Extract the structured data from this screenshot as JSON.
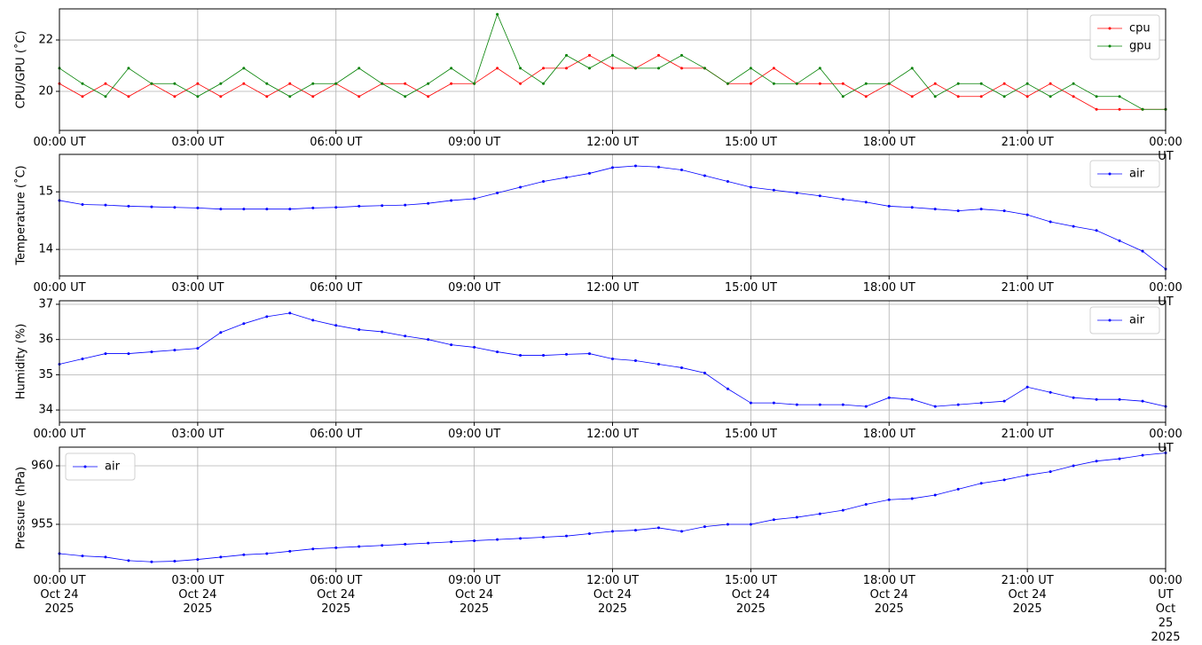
{
  "chart_data": [
    {
      "type": "line",
      "ylabel": "CPU/GPU (˚C)",
      "legend": "upper right",
      "grid": true,
      "x": [
        0,
        0.5,
        1,
        1.5,
        2,
        2.5,
        3,
        3.5,
        4,
        4.5,
        5,
        5.5,
        6,
        6.5,
        7,
        7.5,
        8,
        8.5,
        9,
        9.5,
        10,
        10.5,
        11,
        11.5,
        12,
        12.5,
        13,
        13.5,
        14,
        14.5,
        15,
        15.5,
        16,
        16.5,
        17,
        17.5,
        18,
        18.5,
        19,
        19.5,
        20,
        20.5,
        21,
        21.5,
        22,
        22.5,
        23,
        23.5,
        24
      ],
      "xlim": [
        0,
        24
      ],
      "xticks": [
        {
          "value": 0,
          "label": "00:00 UT"
        },
        {
          "value": 3,
          "label": "03:00 UT"
        },
        {
          "value": 6,
          "label": "06:00 UT"
        },
        {
          "value": 9,
          "label": "09:00 UT"
        },
        {
          "value": 12,
          "label": "12:00 UT"
        },
        {
          "value": 15,
          "label": "15:00 UT"
        },
        {
          "value": 18,
          "label": "18:00 UT"
        },
        {
          "value": 21,
          "label": "21:00 UT"
        },
        {
          "value": 24,
          "label": "00:00 UT"
        }
      ],
      "ylim": [
        18.48,
        23.21
      ],
      "yticks": [
        20,
        22
      ],
      "series": [
        {
          "name": "cpu",
          "color": "#ff0000",
          "values": [
            20.3,
            19.8,
            20.3,
            19.8,
            20.3,
            19.8,
            20.3,
            19.8,
            20.3,
            19.8,
            20.3,
            19.8,
            20.3,
            19.8,
            20.3,
            20.3,
            19.8,
            20.3,
            20.3,
            20.9,
            20.3,
            20.9,
            20.9,
            21.4,
            20.9,
            20.9,
            21.4,
            20.9,
            20.9,
            20.3,
            20.3,
            20.9,
            20.3,
            20.3,
            20.3,
            19.8,
            20.3,
            19.8,
            20.3,
            19.8,
            19.8,
            20.3,
            19.8,
            20.3,
            19.8,
            19.3,
            19.3,
            19.3,
            19.3
          ]
        },
        {
          "name": "gpu",
          "color": "#008000",
          "values": [
            20.9,
            20.3,
            19.8,
            20.9,
            20.3,
            20.3,
            19.8,
            20.3,
            20.9,
            20.3,
            19.8,
            20.3,
            20.3,
            20.9,
            20.3,
            19.8,
            20.3,
            20.9,
            20.3,
            23.0,
            20.9,
            20.3,
            21.4,
            20.9,
            21.4,
            20.9,
            20.9,
            21.4,
            20.9,
            20.3,
            20.9,
            20.3,
            20.3,
            20.9,
            19.8,
            20.3,
            20.3,
            20.9,
            19.8,
            20.3,
            20.3,
            19.8,
            20.3,
            19.8,
            20.3,
            19.8,
            19.8,
            19.3,
            19.3
          ]
        }
      ]
    },
    {
      "type": "line",
      "ylabel": "Temperature (˚C)",
      "legend": "upper right",
      "grid": true,
      "x": [
        0,
        0.5,
        1,
        1.5,
        2,
        2.5,
        3,
        3.5,
        4,
        4.5,
        5,
        5.5,
        6,
        6.5,
        7,
        7.5,
        8,
        8.5,
        9,
        9.5,
        10,
        10.5,
        11,
        11.5,
        12,
        12.5,
        13,
        13.5,
        14,
        14.5,
        15,
        15.5,
        16,
        16.5,
        17,
        17.5,
        18,
        18.5,
        19,
        19.5,
        20,
        20.5,
        21,
        21.5,
        22,
        22.5,
        23,
        23.5,
        24
      ],
      "xlim": [
        0,
        24
      ],
      "xticks": [
        {
          "value": 0,
          "label": "00:00 UT"
        },
        {
          "value": 3,
          "label": "03:00 UT"
        },
        {
          "value": 6,
          "label": "06:00 UT"
        },
        {
          "value": 9,
          "label": "09:00 UT"
        },
        {
          "value": 12,
          "label": "12:00 UT"
        },
        {
          "value": 15,
          "label": "15:00 UT"
        },
        {
          "value": 18,
          "label": "18:00 UT"
        },
        {
          "value": 21,
          "label": "21:00 UT"
        },
        {
          "value": 24,
          "label": "00:00 UT"
        }
      ],
      "ylim": [
        13.54,
        15.65
      ],
      "yticks": [
        14,
        15
      ],
      "series": [
        {
          "name": "air",
          "color": "#0000ff",
          "values": [
            14.85,
            14.78,
            14.77,
            14.75,
            14.74,
            14.73,
            14.72,
            14.7,
            14.7,
            14.7,
            14.7,
            14.72,
            14.73,
            14.75,
            14.76,
            14.77,
            14.8,
            14.85,
            14.88,
            14.98,
            15.08,
            15.18,
            15.25,
            15.32,
            15.42,
            15.45,
            15.43,
            15.38,
            15.28,
            15.18,
            15.08,
            15.03,
            14.98,
            14.93,
            14.87,
            14.82,
            14.75,
            14.73,
            14.7,
            14.67,
            14.7,
            14.67,
            14.6,
            14.48,
            14.4,
            14.33,
            14.15,
            13.97,
            13.66
          ]
        }
      ]
    },
    {
      "type": "line",
      "ylabel": "Humidity (%)",
      "legend": "upper right",
      "grid": true,
      "x": [
        0,
        0.5,
        1,
        1.5,
        2,
        2.5,
        3,
        3.5,
        4,
        4.5,
        5,
        5.5,
        6,
        6.5,
        7,
        7.5,
        8,
        8.5,
        9,
        9.5,
        10,
        10.5,
        11,
        11.5,
        12,
        12.5,
        13,
        13.5,
        14,
        14.5,
        15,
        15.5,
        16,
        16.5,
        17,
        17.5,
        18,
        18.5,
        19,
        19.5,
        20,
        20.5,
        21,
        21.5,
        22,
        22.5,
        23,
        23.5,
        24
      ],
      "xlim": [
        0,
        24
      ],
      "xticks": [
        {
          "value": 0,
          "label": "00:00 UT"
        },
        {
          "value": 3,
          "label": "03:00 UT"
        },
        {
          "value": 6,
          "label": "06:00 UT"
        },
        {
          "value": 9,
          "label": "09:00 UT"
        },
        {
          "value": 12,
          "label": "12:00 UT"
        },
        {
          "value": 15,
          "label": "15:00 UT"
        },
        {
          "value": 18,
          "label": "18:00 UT"
        },
        {
          "value": 21,
          "label": "21:00 UT"
        },
        {
          "value": 24,
          "label": "00:00 UT"
        }
      ],
      "ylim": [
        33.65,
        37.1
      ],
      "yticks": [
        34,
        35,
        36,
        37
      ],
      "series": [
        {
          "name": "air",
          "color": "#0000ff",
          "values": [
            35.3,
            35.45,
            35.6,
            35.6,
            35.65,
            35.7,
            35.75,
            36.2,
            36.45,
            36.65,
            36.75,
            36.55,
            36.4,
            36.28,
            36.22,
            36.1,
            36.0,
            35.85,
            35.78,
            35.65,
            35.55,
            35.55,
            35.58,
            35.6,
            35.45,
            35.4,
            35.3,
            35.2,
            35.05,
            34.6,
            34.2,
            34.2,
            34.15,
            34.15,
            34.15,
            34.1,
            34.35,
            34.3,
            34.1,
            34.15,
            34.2,
            34.25,
            34.65,
            34.5,
            34.35,
            34.3,
            34.3,
            34.25,
            34.1
          ]
        }
      ]
    },
    {
      "type": "line",
      "ylabel": "Pressure (hPa)",
      "legend": "upper left",
      "grid": true,
      "x": [
        0,
        0.5,
        1,
        1.5,
        2,
        2.5,
        3,
        3.5,
        4,
        4.5,
        5,
        5.5,
        6,
        6.5,
        7,
        7.5,
        8,
        8.5,
        9,
        9.5,
        10,
        10.5,
        11,
        11.5,
        12,
        12.5,
        13,
        13.5,
        14,
        14.5,
        15,
        15.5,
        16,
        16.5,
        17,
        17.5,
        18,
        18.5,
        19,
        19.5,
        20,
        20.5,
        21,
        21.5,
        22,
        22.5,
        23,
        23.5,
        24
      ],
      "xlim": [
        0,
        24
      ],
      "xticks": [
        {
          "value": 0,
          "label": "00:00 UT\nOct 24\n2025"
        },
        {
          "value": 3,
          "label": "03:00 UT\nOct 24\n2025"
        },
        {
          "value": 6,
          "label": "06:00 UT\nOct 24\n2025"
        },
        {
          "value": 9,
          "label": "09:00 UT\nOct 24\n2025"
        },
        {
          "value": 12,
          "label": "12:00 UT\nOct 24\n2025"
        },
        {
          "value": 15,
          "label": "15:00 UT\nOct 24\n2025"
        },
        {
          "value": 18,
          "label": "18:00 UT\nOct 24\n2025"
        },
        {
          "value": 21,
          "label": "21:00 UT\nOct 24\n2025"
        },
        {
          "value": 24,
          "label": "00:00 UT\nOct 25\n2025"
        }
      ],
      "ylim": [
        951.21,
        961.59
      ],
      "yticks": [
        955,
        960
      ],
      "series": [
        {
          "name": "air",
          "color": "#0000ff",
          "values": [
            952.5,
            952.3,
            952.2,
            951.9,
            951.8,
            951.85,
            952.0,
            952.2,
            952.4,
            952.5,
            952.7,
            952.9,
            953.0,
            953.1,
            953.2,
            953.3,
            953.4,
            953.5,
            953.6,
            953.7,
            953.8,
            953.9,
            954.0,
            954.2,
            954.4,
            954.5,
            954.7,
            954.4,
            954.8,
            955.0,
            955.0,
            955.4,
            955.6,
            955.9,
            956.2,
            956.7,
            957.1,
            957.2,
            957.5,
            958.0,
            958.5,
            958.8,
            959.2,
            959.5,
            960.0,
            960.4,
            960.6,
            960.9,
            961.1
          ]
        }
      ]
    }
  ]
}
